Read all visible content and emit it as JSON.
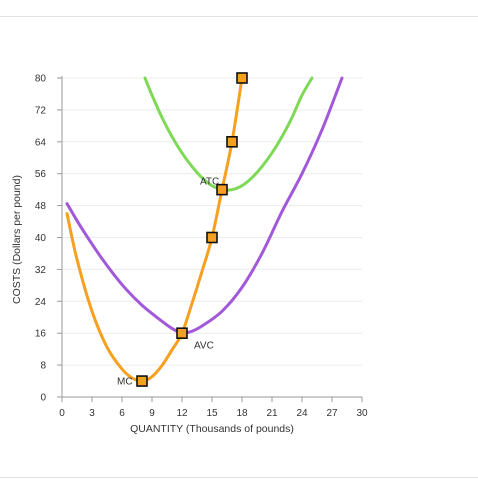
{
  "chart_data": {
    "type": "line",
    "xlabel": "QUANTITY (Thousands of pounds)",
    "ylabel": "COSTS (Dollars per pound)",
    "xlim": [
      0,
      30
    ],
    "ylim": [
      0,
      80
    ],
    "x_ticks": [
      0,
      3,
      6,
      9,
      12,
      15,
      18,
      21,
      24,
      27,
      30
    ],
    "y_ticks": [
      0,
      8,
      16,
      24,
      32,
      40,
      48,
      56,
      64,
      72,
      80
    ],
    "grid": true,
    "series": [
      {
        "name": "ATC",
        "color": "#7ed957",
        "x": [
          8.3,
          9,
          10,
          11,
          12,
          13,
          14,
          15,
          16,
          17,
          18,
          19,
          20,
          21,
          22,
          23,
          24,
          25
        ],
        "y": [
          80,
          75.7,
          70.1,
          65.3,
          61.2,
          57.8,
          55,
          53,
          52,
          52,
          53,
          55,
          57.8,
          61.2,
          65.3,
          70.1,
          75.7,
          80
        ]
      },
      {
        "name": "AVC",
        "color": "#a259d9",
        "x": [
          0.5,
          2,
          4,
          6,
          8,
          10,
          11,
          12,
          13,
          14,
          16,
          18,
          20,
          22,
          24,
          26,
          28
        ],
        "y": [
          48.5,
          42.2,
          34.7,
          28.2,
          23,
          19,
          17.2,
          16,
          16.5,
          17.8,
          21.5,
          27.5,
          36,
          46.5,
          56,
          67,
          80
        ]
      },
      {
        "name": "MC",
        "color": "#f5a020",
        "x": [
          0.5,
          1.5,
          3,
          4.5,
          6,
          7,
          8,
          9,
          10,
          11,
          12,
          13,
          14,
          15,
          16,
          17,
          18
        ],
        "y": [
          46,
          34.5,
          21.5,
          12.5,
          7,
          4.8,
          4,
          5.1,
          7.9,
          11.8,
          16,
          23.5,
          31.5,
          40,
          52,
          64,
          80
        ]
      }
    ],
    "markers": [
      {
        "x": 8,
        "y": 4
      },
      {
        "x": 12,
        "y": 16
      },
      {
        "x": 15,
        "y": 40
      },
      {
        "x": 16,
        "y": 52
      },
      {
        "x": 17,
        "y": 64
      },
      {
        "x": 18,
        "y": 80
      }
    ],
    "labels": [
      {
        "text": "ATC",
        "x": 13.8,
        "y": 53.3
      },
      {
        "text": "AVC",
        "x": 13.2,
        "y": 12.2
      },
      {
        "text": "MC",
        "x": 5.5,
        "y": 3.1
      }
    ],
    "marker_color": "#f5a020"
  }
}
